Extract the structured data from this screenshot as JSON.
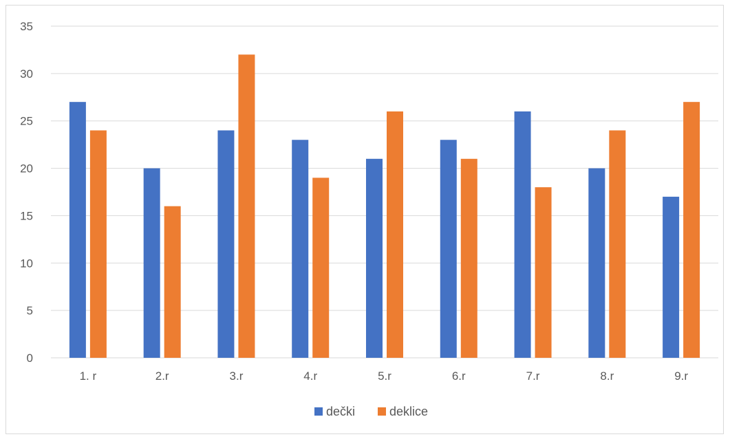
{
  "chart_data": {
    "type": "bar",
    "categories": [
      "1. r",
      "2.r",
      "3.r",
      "4.r",
      "5.r",
      "6.r",
      "7.r",
      "8.r",
      "9.r"
    ],
    "series": [
      {
        "name": "dečki",
        "color": "#4472c4",
        "values": [
          27,
          20,
          24,
          23,
          21,
          23,
          26,
          20,
          17
        ]
      },
      {
        "name": "deklice",
        "color": "#ed7d31",
        "values": [
          24,
          16,
          32,
          19,
          26,
          21,
          18,
          24,
          27
        ]
      }
    ],
    "yticks": [
      "0",
      "5",
      "10",
      "15",
      "20",
      "25",
      "30",
      "35"
    ],
    "ylim": [
      0,
      35
    ],
    "grid": true,
    "gridColor": "#d9d9d9",
    "legend": "bottom"
  }
}
